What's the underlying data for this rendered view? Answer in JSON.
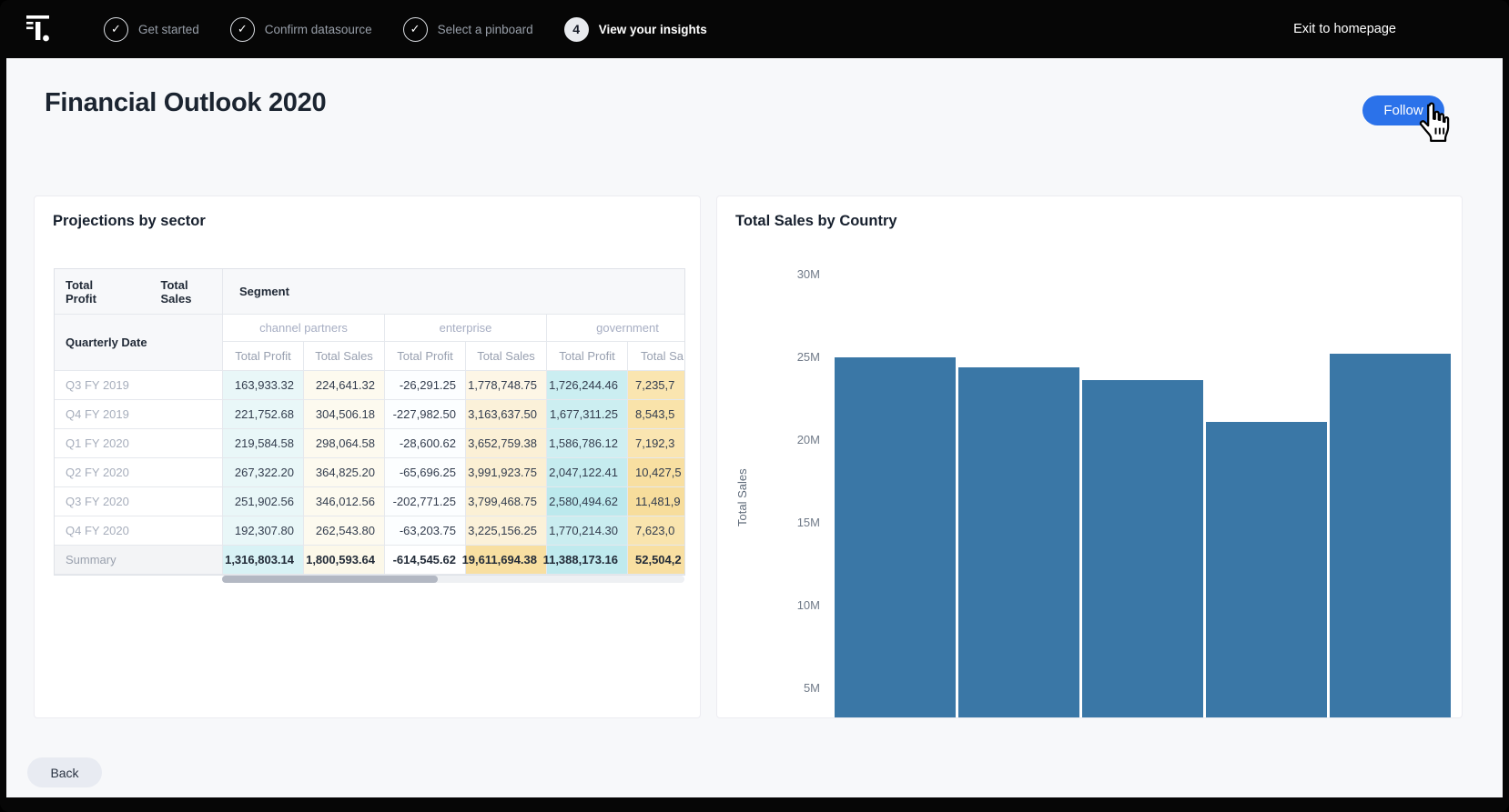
{
  "topbar": {
    "logo_name": "thoughtspot-logo",
    "steps": [
      {
        "label": "Get started",
        "state": "done"
      },
      {
        "label": "Confirm datasource",
        "state": "done"
      },
      {
        "label": "Select a pinboard",
        "state": "done"
      },
      {
        "label": "View your insights",
        "state": "current",
        "number": "4"
      }
    ],
    "exit_label": "Exit to homepage"
  },
  "page": {
    "title": "Financial Outlook 2020",
    "follow_label": "Follow",
    "back_label": "Back"
  },
  "table_card": {
    "title": "Projections by sector",
    "corner": {
      "measures": [
        "Total Profit",
        "Total Sales"
      ],
      "columns_title": "Segment",
      "rows_title": "Quarterly Date"
    },
    "groups": [
      {
        "label": "channel partners",
        "cols": [
          "Total Profit",
          "Total Sales"
        ]
      },
      {
        "label": "enterprise",
        "cols": [
          "Total Profit",
          "Total Sales"
        ]
      },
      {
        "label": "government",
        "cols": [
          "Total Profit",
          "Total Sa"
        ]
      }
    ],
    "rows": [
      {
        "label": "Q3 FY 2019",
        "values": [
          "163,933.32",
          "224,641.32",
          "-26,291.25",
          "1,778,748.75",
          "1,726,244.46",
          "7,235,7"
        ]
      },
      {
        "label": "Q4 FY 2019",
        "values": [
          "221,752.68",
          "304,506.18",
          "-227,982.50",
          "3,163,637.50",
          "1,677,311.25",
          "8,543,5"
        ]
      },
      {
        "label": "Q1 FY 2020",
        "values": [
          "219,584.58",
          "298,064.58",
          "-28,600.62",
          "3,652,759.38",
          "1,586,786.12",
          "7,192,3"
        ]
      },
      {
        "label": "Q2 FY 2020",
        "values": [
          "267,322.20",
          "364,825.20",
          "-65,696.25",
          "3,991,923.75",
          "2,047,122.41",
          "10,427,5"
        ]
      },
      {
        "label": "Q3 FY 2020",
        "values": [
          "251,902.56",
          "346,012.56",
          "-202,771.25",
          "3,799,468.75",
          "2,580,494.62",
          "11,481,9"
        ]
      },
      {
        "label": "Q4 FY 2020",
        "values": [
          "192,307.80",
          "262,543.80",
          "-63,203.75",
          "3,225,156.25",
          "1,770,214.30",
          "7,623,0"
        ]
      },
      {
        "label": "Summary",
        "values": [
          "1,316,803.14",
          "1,800,593.64",
          "-614,545.62",
          "19,611,694.38",
          "11,388,173.16",
          "52,504,2"
        ],
        "is_summary": true
      }
    ],
    "cell_colors": [
      [
        "#e9f7f8",
        "#fdfaef",
        "#fcfeff",
        "#fdf6e6",
        "#cbeef1",
        "#fae5b0"
      ],
      [
        "#e9f7f8",
        "#fdfaef",
        "#fcfeff",
        "#fbf1d9",
        "#cceef1",
        "#f9e3aa"
      ],
      [
        "#e9f7f8",
        "#fdfaef",
        "#fcfeff",
        "#fbf0d6",
        "#cfeff2",
        "#fae5b1"
      ],
      [
        "#e9f7f8",
        "#fdfaef",
        "#fcfeff",
        "#fbefd3",
        "#c5ecef",
        "#f8dfa1"
      ],
      [
        "#e9f7f8",
        "#fdfaef",
        "#fcfeff",
        "#fbf0d5",
        "#bce9ed",
        "#f7dd9c"
      ],
      [
        "#e9f7f8",
        "#fdfaef",
        "#fcfeff",
        "#fbf1d9",
        "#caedf0",
        "#f9e4ae"
      ],
      [
        "#d8f2f5",
        "#fcf8e9",
        "#ffffff",
        "#f8dfa1",
        "#bfeaee",
        "#f8dfa1"
      ]
    ]
  },
  "chart_card": {
    "title": "Total Sales by Country"
  },
  "chart_data": {
    "type": "bar",
    "title": "Total Sales by Country",
    "ylabel": "Total Sales",
    "yticks": [
      "30M",
      "25M",
      "20M",
      "15M",
      "10M",
      "5M"
    ],
    "ylim_millions": [
      0,
      30
    ],
    "values_millions": [
      25.0,
      24.4,
      23.6,
      21.1,
      25.2
    ],
    "bar_color": "#3a77a6",
    "grid": "off",
    "x_axis_labels": "clipped below card edge",
    "legend": "none"
  },
  "colors": {
    "accent_blue": "#2b72ea",
    "bar_blue": "#3a77a6",
    "topbar_black": "#060606",
    "page_bg": "#f7f8fa",
    "card_bg": "#ffffff"
  }
}
